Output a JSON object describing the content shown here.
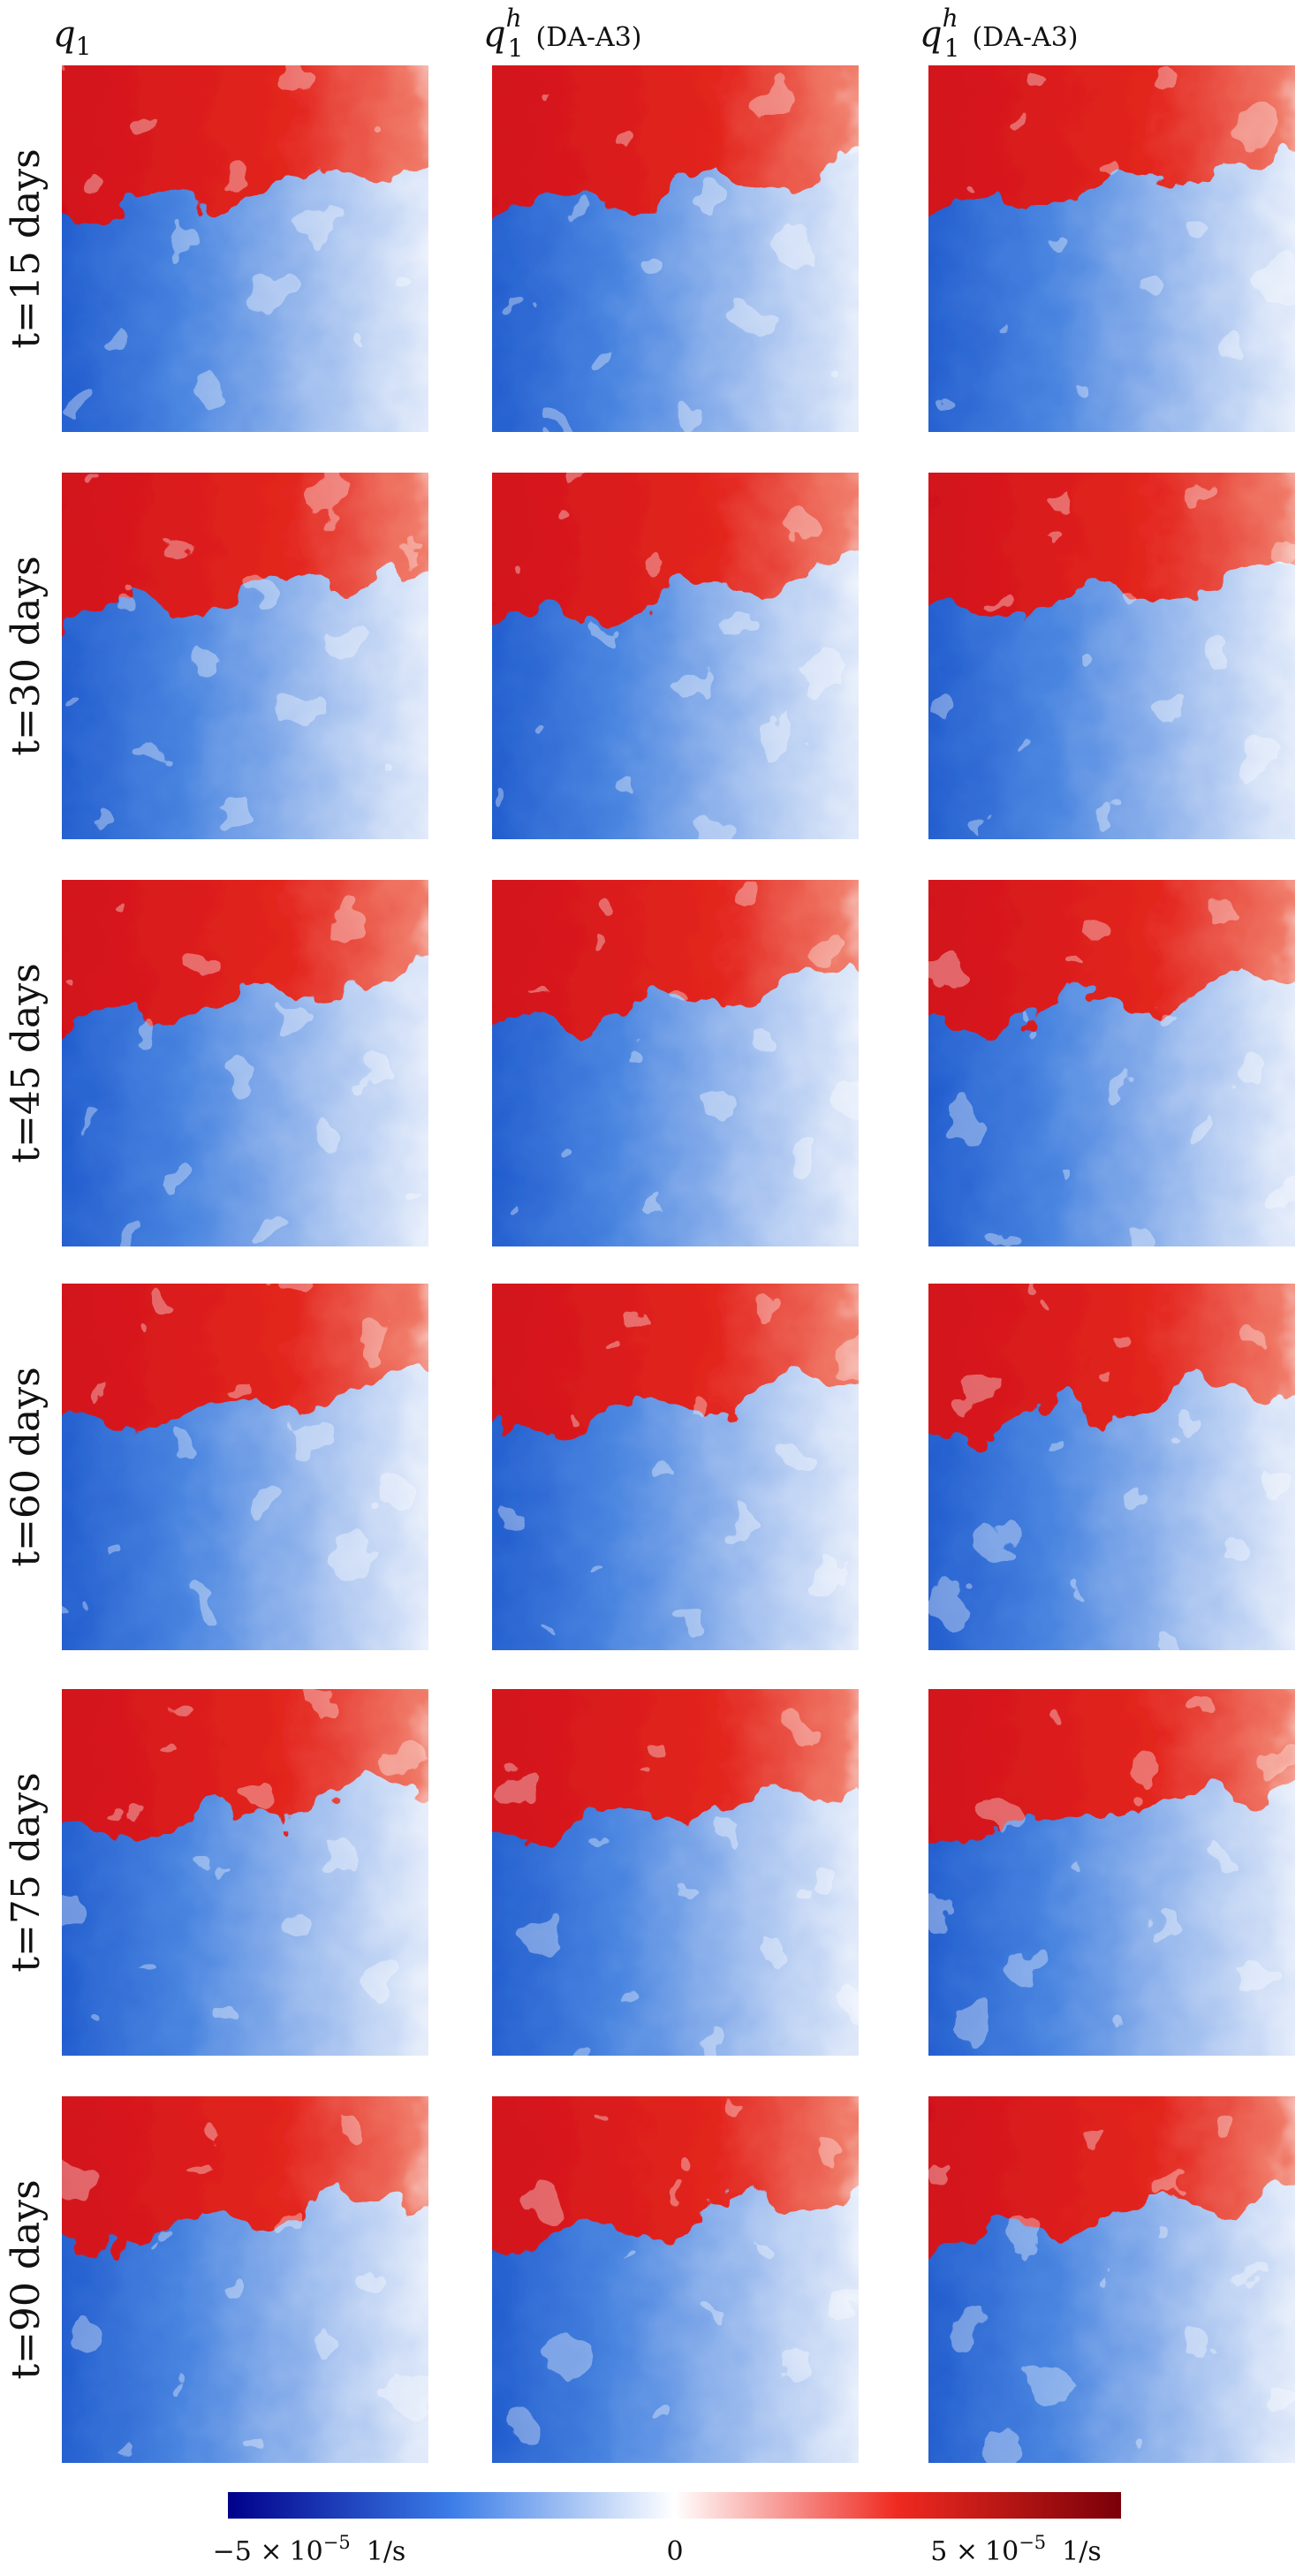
{
  "columns": [
    {
      "symbol": "q",
      "subscript": "1"
    },
    {
      "symbol": "q",
      "subscript": "1",
      "superscript": "h",
      "note": "(DA-A3)"
    },
    {
      "symbol": "q",
      "subscript": "1",
      "superscript": "h",
      "note": "(DA-A3)"
    }
  ],
  "rows": [
    "t=15 days",
    "t=30 days",
    "t=45 days",
    "t=60 days",
    "t=75 days",
    "t=90 days"
  ],
  "colorbar": {
    "labels": [
      {
        "mantissa": "−5 ×",
        "base": "10",
        "exponent": "−5",
        "unit": "1/s"
      },
      {
        "mantissa": "0"
      },
      {
        "mantissa": "5 ×",
        "base": "10",
        "exponent": "−5",
        "unit": "1/s"
      }
    ]
  }
}
